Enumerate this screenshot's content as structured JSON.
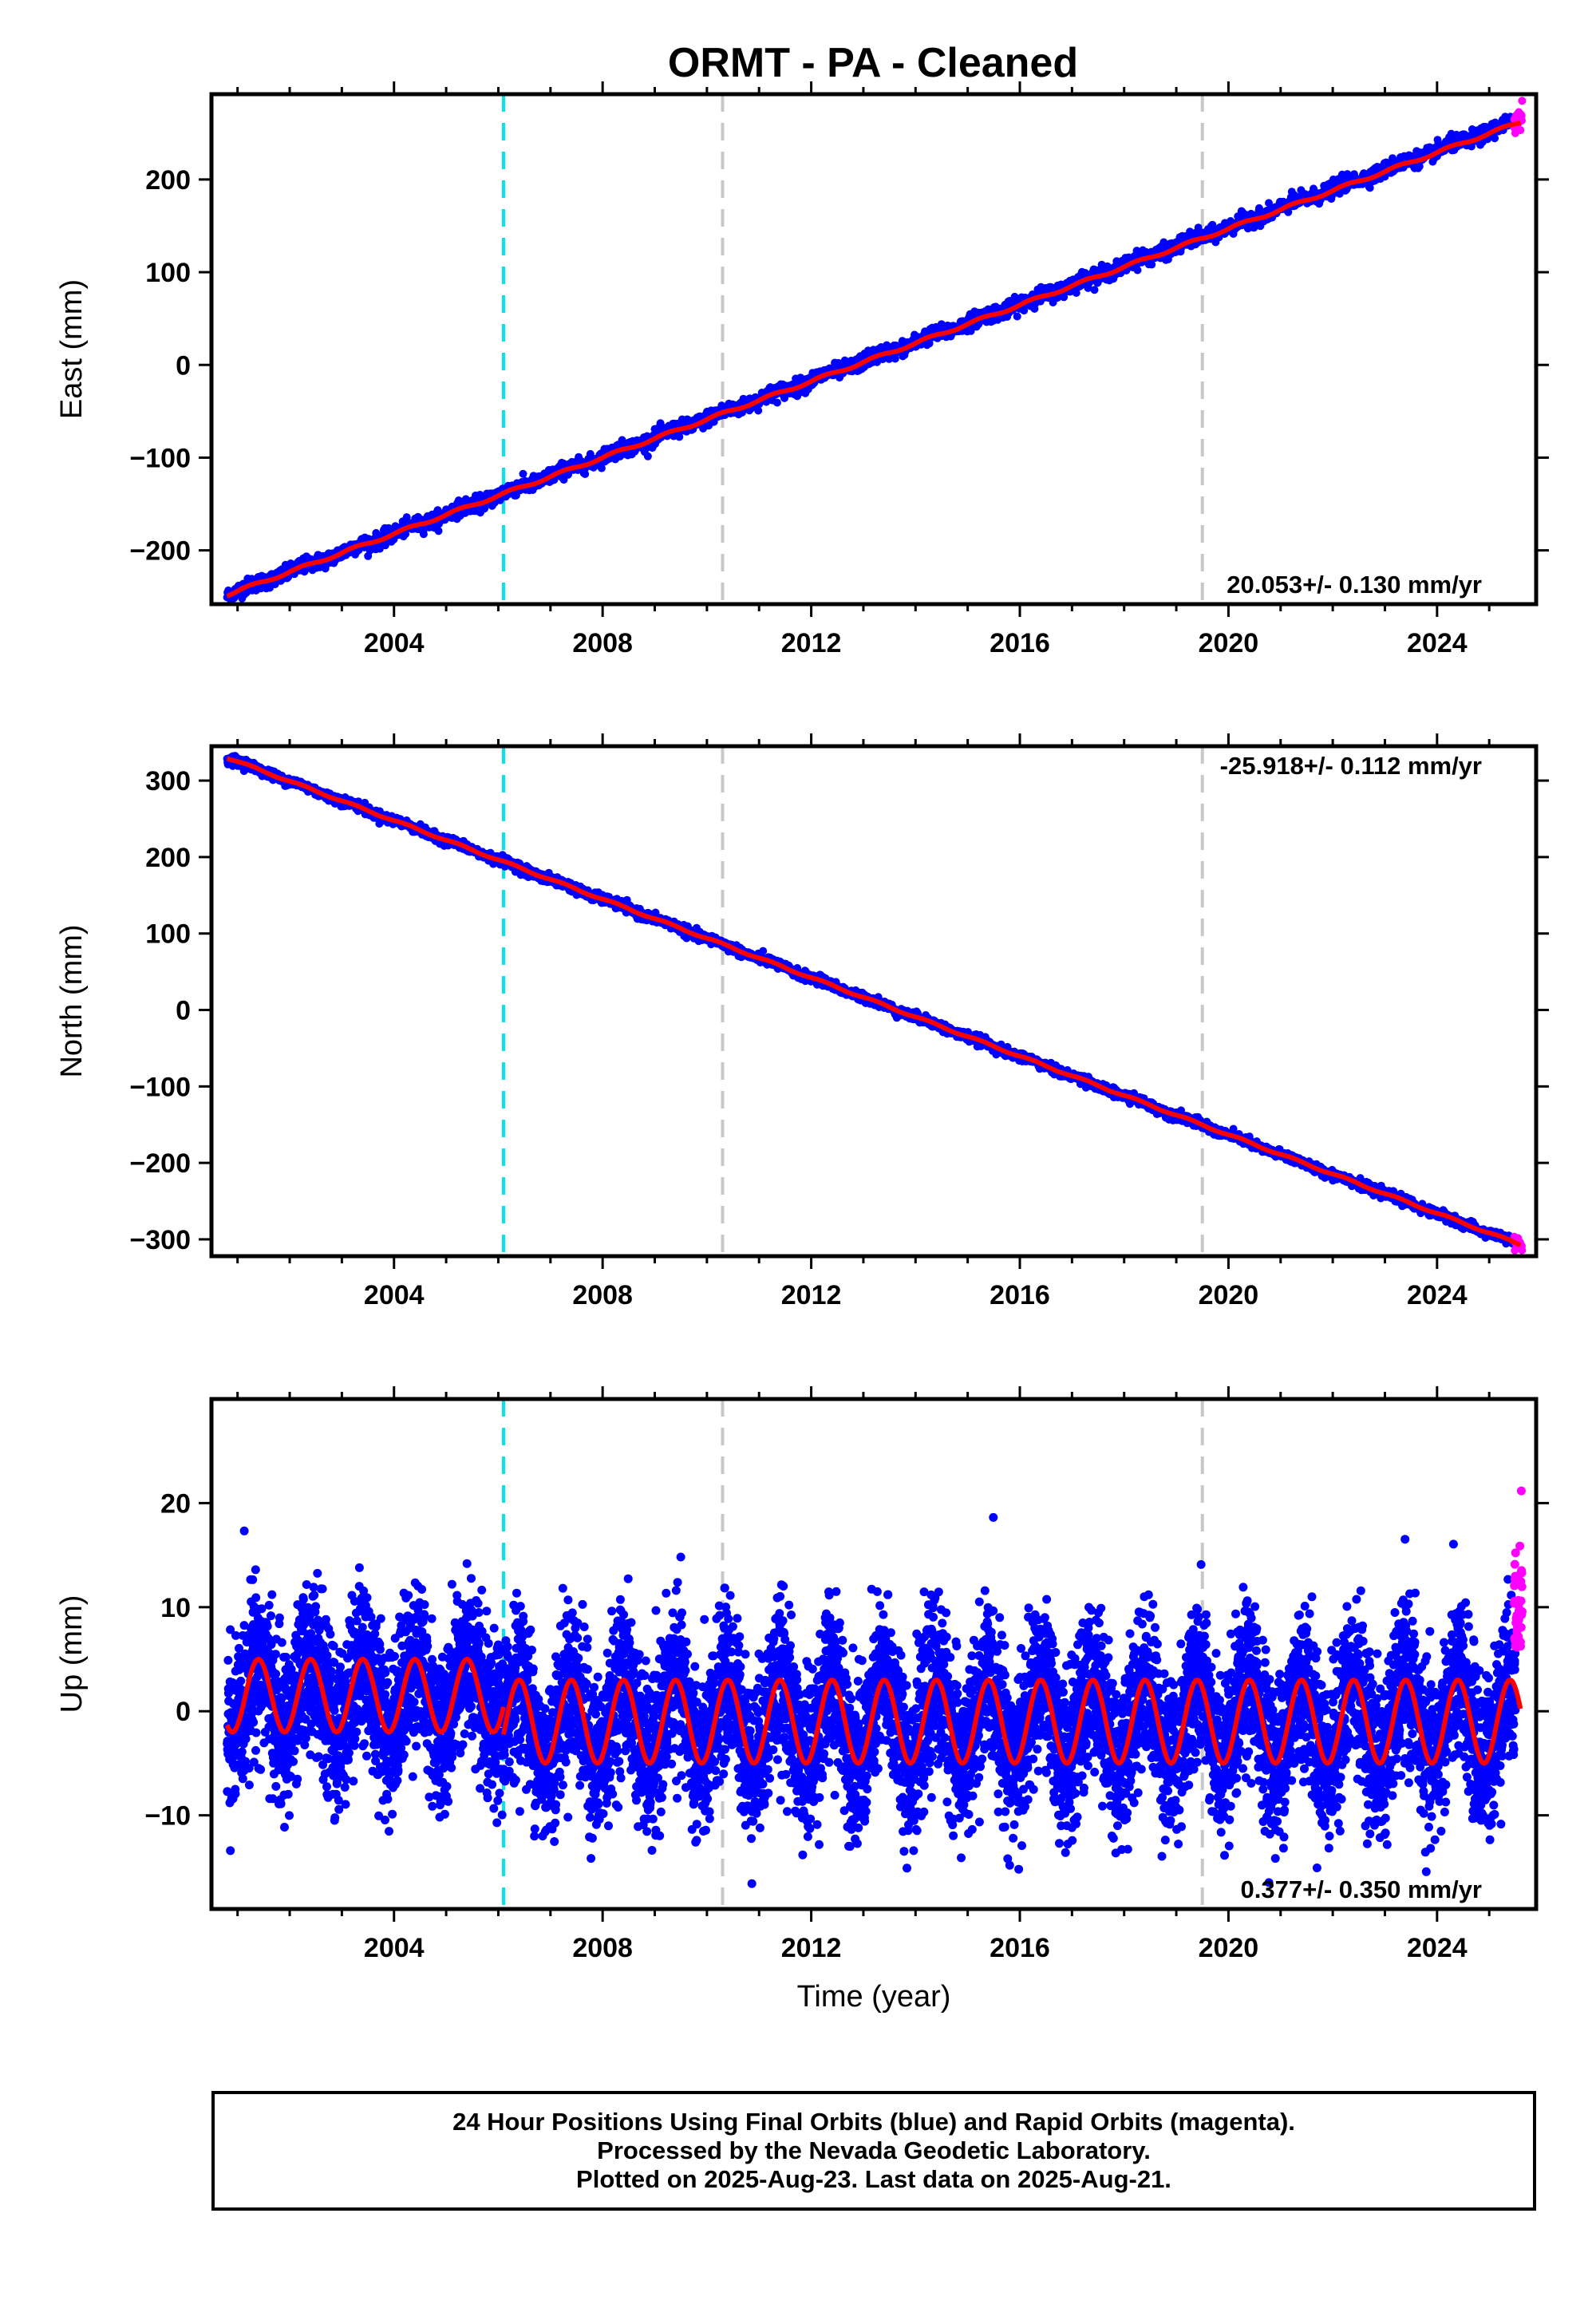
{
  "title": "ORMT  - PA - Cleaned",
  "colors": {
    "final_orbits": "#0000ff",
    "rapid_orbits": "#ff00ff",
    "model": "#ff0000",
    "antenna_change": "#00e5ee",
    "other_change": "#c8c8c8"
  },
  "footer": {
    "line1": "24 Hour Positions Using Final Orbits (blue) and Rapid Orbits (magenta).",
    "line2": "Processed by the Nevada Geodetic Laboratory.",
    "line3": "Plotted on 2025-Aug-23. Last data on 2025-Aug-21."
  },
  "chart_data": [
    {
      "type": "scatter",
      "component": "east",
      "ylabel": "East (mm)",
      "xlim": [
        2000.5,
        2025.9
      ],
      "ylim": [
        -258,
        292
      ],
      "yticks": [
        -200,
        -100,
        0,
        100,
        200
      ],
      "ytick_labels": [
        "−200",
        "−100",
        "0",
        "100",
        "200"
      ],
      "xticks": [
        2004,
        2008,
        2012,
        2016,
        2020,
        2024
      ],
      "xtick_labels": [
        "2004",
        "2008",
        "2012",
        "2016",
        "2020",
        "2024"
      ],
      "minor_xticks": [
        2001,
        2002,
        2003,
        2005,
        2006,
        2007,
        2009,
        2010,
        2011,
        2013,
        2014,
        2015,
        2017,
        2018,
        2019,
        2021,
        2022,
        2023,
        2025
      ],
      "rate_label": "20.053+/- 0.130 mm/yr",
      "rate_label_position": "bottom-right",
      "series": [
        {
          "name": "Final Orbits",
          "x_range": [
            2000.8,
            2025.5
          ],
          "start": -248,
          "end": 262,
          "scatter": 4,
          "seasonal": 1.5
        },
        {
          "name": "Rapid Orbits",
          "x_range": [
            2025.48,
            2025.63
          ],
          "start": 262,
          "end": 270,
          "scatter": 7
        }
      ],
      "model": {
        "start": -248,
        "end": 262,
        "seasonal": 1.5
      }
    },
    {
      "type": "scatter",
      "component": "north",
      "ylabel": "North (mm)",
      "xlim": [
        2000.5,
        2025.9
      ],
      "ylim": [
        -322,
        345
      ],
      "yticks": [
        -300,
        -200,
        -100,
        0,
        100,
        200,
        300
      ],
      "ytick_labels": [
        "−300",
        "−200",
        "−100",
        "0",
        "100",
        "200",
        "300"
      ],
      "xticks": [
        2004,
        2008,
        2012,
        2016,
        2020,
        2024
      ],
      "xtick_labels": [
        "2004",
        "2008",
        "2012",
        "2016",
        "2020",
        "2024"
      ],
      "minor_xticks": [
        2001,
        2002,
        2003,
        2005,
        2006,
        2007,
        2009,
        2010,
        2011,
        2013,
        2014,
        2015,
        2017,
        2018,
        2019,
        2021,
        2022,
        2023,
        2025
      ],
      "rate_label": "-25.918+/- 0.112 mm/yr",
      "rate_label_position": "top-right",
      "series": [
        {
          "name": "Final Orbits",
          "x_range": [
            2000.8,
            2025.5
          ],
          "start": 330,
          "end": -305,
          "scatter": 3,
          "seasonal": 1.2
        },
        {
          "name": "Rapid Orbits",
          "x_range": [
            2025.48,
            2025.63
          ],
          "start": -305,
          "end": -310,
          "scatter": 4
        }
      ],
      "model": {
        "start": 330,
        "end": -307,
        "seasonal": 1.2
      }
    },
    {
      "type": "scatter",
      "component": "up",
      "ylabel": "Up (mm)",
      "xlabel": "Time (year)",
      "xlim": [
        2000.5,
        2025.9
      ],
      "ylim": [
        -19,
        30
      ],
      "yticks": [
        -10,
        0,
        10,
        20
      ],
      "ytick_labels": [
        "−10",
        "0",
        "10",
        "20"
      ],
      "xticks": [
        2004,
        2008,
        2012,
        2016,
        2020,
        2024
      ],
      "xtick_labels": [
        "2004",
        "2008",
        "2012",
        "2016",
        "2020",
        "2024"
      ],
      "minor_xticks": [
        2001,
        2002,
        2003,
        2005,
        2006,
        2007,
        2009,
        2010,
        2011,
        2013,
        2014,
        2015,
        2017,
        2018,
        2019,
        2021,
        2022,
        2023,
        2025
      ],
      "rate_label": "0.377+/- 0.350 mm/yr",
      "rate_label_position": "bottom-right",
      "series": [
        {
          "name": "Final Orbits",
          "x_range": [
            2000.8,
            2025.5
          ],
          "scatter": 3.8
        },
        {
          "name": "Rapid Orbits",
          "x_range": [
            2025.48,
            2025.63
          ],
          "scatter": 5
        }
      ],
      "model": {
        "segments": [
          {
            "x_range": [
              2000.8,
              2006.1
            ],
            "offset": 1.5,
            "amplitude": 3.5
          },
          {
            "x_range": [
              2006.1,
              2025.6
            ],
            "offset": -1.0,
            "amplitude": 4.0
          }
        ]
      }
    }
  ],
  "offsets": [
    {
      "year": 2006.1,
      "kind": "antenna_change"
    },
    {
      "year": 2010.3,
      "kind": "other_change"
    },
    {
      "year": 2019.5,
      "kind": "other_change"
    }
  ]
}
